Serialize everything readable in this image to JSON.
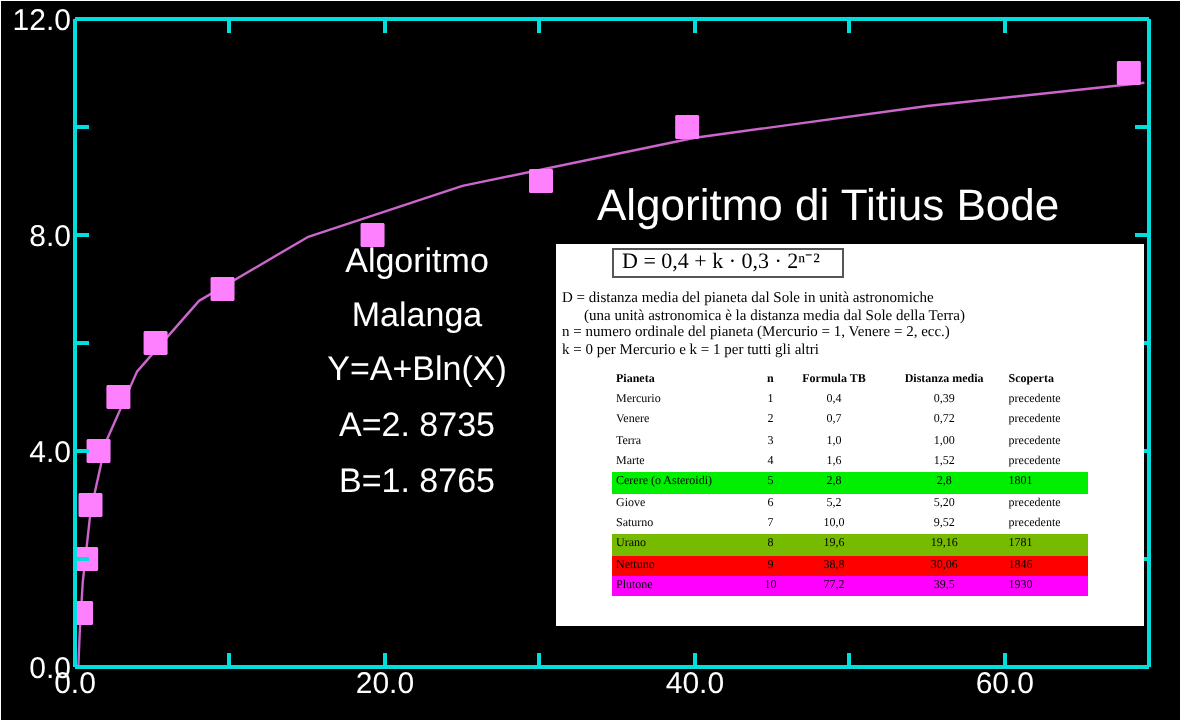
{
  "chart_data": {
    "type": "scatter",
    "xlim": [
      0,
      69.3
    ],
    "ylim": [
      0,
      12
    ],
    "xticks": [
      {
        "value": 0,
        "label": "0.0"
      },
      {
        "value": 10,
        "label": null
      },
      {
        "value": 20,
        "label": "20.0"
      },
      {
        "value": 30,
        "label": null
      },
      {
        "value": 40,
        "label": "40.0"
      },
      {
        "value": 50,
        "label": null
      },
      {
        "value": 60,
        "label": "60.0"
      }
    ],
    "yticks": [
      {
        "value": 0,
        "label": "0.0"
      },
      {
        "value": 2,
        "label": null
      },
      {
        "value": 4,
        "label": "4.0"
      },
      {
        "value": 6,
        "label": null
      },
      {
        "value": 8,
        "label": "8.0"
      },
      {
        "value": 10,
        "label": null
      },
      {
        "value": 12,
        "label": "12.0"
      }
    ],
    "grid": false,
    "marker": "square",
    "series": [
      {
        "type": "line",
        "marker": "none",
        "color": "#cc66cc",
        "x": [
          0.22,
          0.3,
          0.5,
          1,
          2,
          4,
          8,
          15,
          25,
          40,
          55,
          69
        ],
        "values": [
          0.03,
          0.61,
          1.57,
          2.87,
          4.17,
          5.47,
          6.78,
          7.96,
          8.91,
          9.8,
          10.39,
          10.82
        ]
      },
      {
        "color": "#ff80ff",
        "x": [
          0.39,
          0.72,
          1.0,
          1.52,
          2.8,
          5.2,
          9.52,
          19.2,
          30.07,
          39.5,
          68
        ],
        "values": [
          1,
          2,
          3,
          4,
          5,
          6,
          7,
          8,
          9,
          10,
          11
        ]
      }
    ],
    "annotations": [
      "Algoritmo di Titius Bode",
      "Algoritmo",
      "Malanga",
      "Y=A+Bln(X)",
      "A=2. 8735",
      "B=1. 8765",
      "D = 0,4 + k · 0,3 · 2ⁿ⁻²",
      "D = distanza media del pianeta dal Sole in unità astronomiche",
      "(una unità astronomica è la distanza media dal Sole della Terra)",
      "n = numero ordinale del pianeta (Mercurio = 1, Venere = 2, ecc.)",
      "k = 0 per Mercurio e k = 1 per tutti gli altri",
      "Pianeta\tn\tFormula TB\tDistanza media\tScoperta",
      "Mercurio\t1\t0,4\t0,39\tprecedente",
      "Venere\t2\t0,7\t0,72\tprecedente",
      "Terra\t3\t1,0\t1,00\tprecedente",
      "Marte\t4\t1,6\t1,52\tprecedente",
      "Cerere (o Asteroidi)\t5\t2,8\t2,8\t1801",
      "Giove\t6\t5,2\t5,20\tprecedente",
      "Saturno\t7\t10,0\t9,52\tprecedente",
      "Urano\t8\t19,6\t19,16\t1781",
      "Nettuno\t9\t38,8\t30,06\t1846",
      "Plutone\t10\t77,2\t39,5\t1930"
    ]
  }
}
